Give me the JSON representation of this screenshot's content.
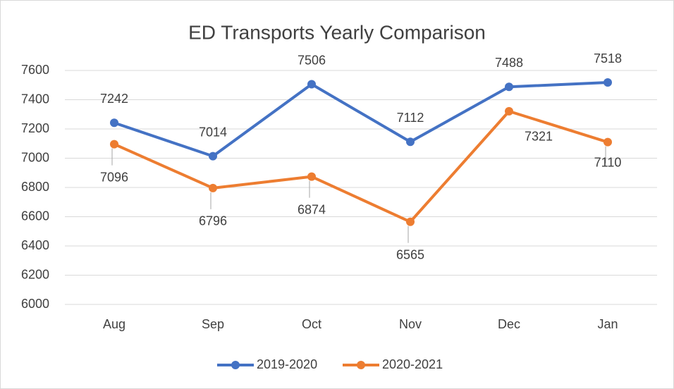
{
  "chart_data": {
    "type": "line",
    "title": "ED Transports Yearly Comparison",
    "categories": [
      "Aug",
      "Sep",
      "Oct",
      "Nov",
      "Dec",
      "Jan"
    ],
    "series": [
      {
        "name": "2019-2020",
        "color": "#4472c4",
        "values": [
          7242,
          7014,
          7506,
          7112,
          7488,
          7518
        ]
      },
      {
        "name": "2020-2021",
        "color": "#ed7d31",
        "values": [
          7096,
          6796,
          6874,
          6565,
          7321,
          7110
        ]
      }
    ],
    "ylim": [
      6000,
      7600
    ],
    "yticks": [
      6000,
      6200,
      6400,
      6600,
      6800,
      7000,
      7200,
      7400,
      7600
    ],
    "grid": true,
    "legend": "bottom"
  }
}
